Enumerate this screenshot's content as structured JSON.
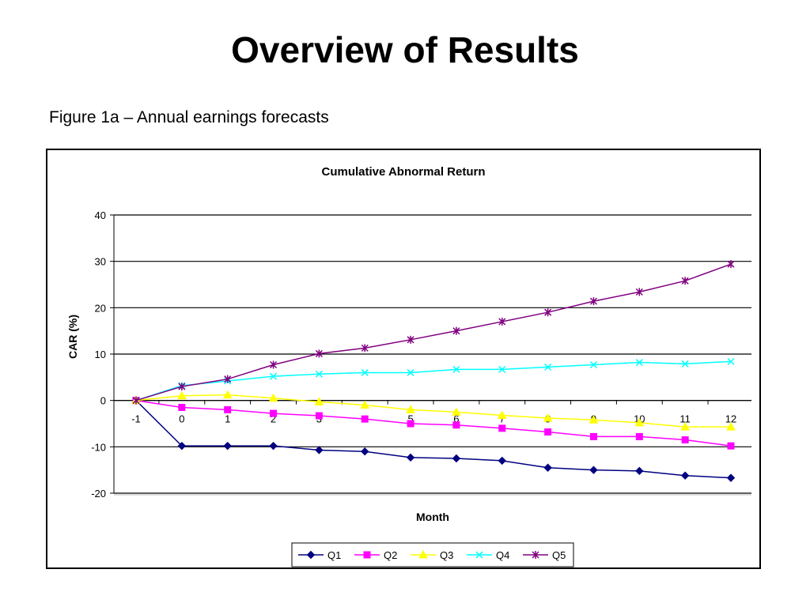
{
  "slide": {
    "title": "Overview of Results",
    "subtitle": "Figure 1a – Annual earnings forecasts"
  },
  "chart_data": {
    "type": "line",
    "title": "Cumulative Abnormal Return",
    "xlabel": "Month",
    "ylabel": "CAR (%)",
    "x": [
      -1,
      0,
      1,
      2,
      3,
      4,
      5,
      6,
      7,
      8,
      9,
      10,
      11,
      12
    ],
    "ylim": [
      -20,
      40
    ],
    "yticks": [
      -20,
      -10,
      0,
      10,
      20,
      30,
      40
    ],
    "grid": "horizontal",
    "legend_position": "bottom",
    "series": [
      {
        "name": "Q1",
        "color": "#000080",
        "marker": "diamond",
        "values": [
          0,
          -9.8,
          -9.8,
          -9.8,
          -10.7,
          -11,
          -12.3,
          -12.5,
          -13,
          -14.5,
          -15,
          -15.2,
          -16.2,
          -16.7
        ]
      },
      {
        "name": "Q2",
        "color": "#FF00FF",
        "marker": "square",
        "values": [
          0,
          -1.5,
          -2,
          -2.8,
          -3.3,
          -4,
          -5,
          -5.3,
          -6,
          -6.8,
          -7.8,
          -7.8,
          -8.5,
          -9.8
        ]
      },
      {
        "name": "Q3",
        "color": "#FFFF00",
        "marker": "triangle",
        "values": [
          0,
          1,
          1.2,
          0.5,
          -0.3,
          -1,
          -2,
          -2.5,
          -3.2,
          -3.8,
          -4.2,
          -4.8,
          -5.7,
          -5.7
        ]
      },
      {
        "name": "Q4",
        "color": "#00FFFF",
        "marker": "x",
        "values": [
          0,
          3.2,
          4.2,
          5.2,
          5.7,
          6,
          6,
          6.7,
          6.7,
          7.2,
          7.7,
          8.2,
          7.9,
          8.4
        ]
      },
      {
        "name": "Q5",
        "color": "#800080",
        "marker": "star",
        "values": [
          0,
          3,
          4.6,
          7.7,
          10.1,
          11.3,
          13.1,
          15,
          17,
          19,
          21.4,
          23.4,
          25.8,
          29.4
        ]
      }
    ]
  }
}
